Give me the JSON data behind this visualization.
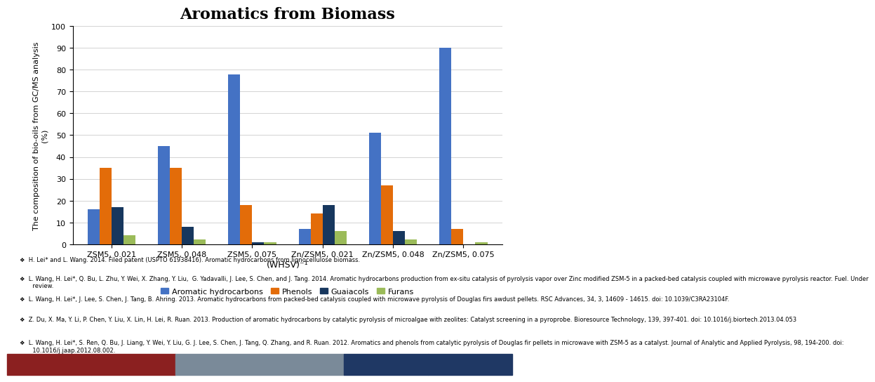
{
  "title": "Aromatics from Biomass",
  "categories": [
    "ZSM5, 0.021",
    "ZSM5, 0.048",
    "ZSM5, 0.075",
    "Zn/ZSM5, 0.021",
    "Zn/ZSM5, 0.048",
    "Zn/ZSM5, 0.075"
  ],
  "xlabel": "(WHSV)⁻¹",
  "ylabel": "The composition of bio-oils from GC/MS analysis\n(%)",
  "series": {
    "Aromatic hydrocarbons": [
      16,
      45,
      78,
      7,
      51,
      90
    ],
    "Phenols": [
      35,
      35,
      18,
      14,
      27,
      7
    ],
    "Guaiacols": [
      17,
      8,
      1,
      18,
      6,
      0
    ],
    "Furans": [
      4,
      2,
      1,
      6,
      2,
      1
    ]
  },
  "colors": {
    "Aromatic hydrocarbons": "#4472C4",
    "Phenols": "#E36C09",
    "Guaiacols": "#17375E",
    "Furans": "#9BBB59"
  },
  "ylim": [
    0,
    100
  ],
  "yticks": [
    0,
    10,
    20,
    30,
    40,
    50,
    60,
    70,
    80,
    90,
    100
  ],
  "title_fontsize": 16,
  "axis_label_fontsize": 8,
  "legend_fontsize": 8,
  "tick_fontsize": 8,
  "ref_fontsize": 6.0,
  "bg_color": "#FFFFFF",
  "references": [
    "❖  H. Lei* and L. Wang. 2014. Filed patent (USPTO 61938416). Aromatic hydrocarbons from lignocellulose biomass.",
    "❖  L. Wang, H. Lei*, Q. Bu, L. Zhu, Y. Wei, X. Zhang, Y. Liu,  G. Yadavalli, J. Lee, S. Chen, and J. Tang. 2014. Aromatic hydrocarbons production from ex-situ catalysis of pyrolysis vapor over Zinc modified ZSM-5 in a packed-bed catalysis coupled with microwave pyrolysis reactor. Fuel. Under\n       review.",
    "❖  L. Wang, H. Lei*, J. Lee, S. Chen, J. Tang, B. Ahring. 2013. Aromatic hydrocarbons from packed-bed catalysis coupled with microwave pyrolysis of Douglas firs awdust pellets. RSC Advances, 34, 3, 14609 - 14615. doi: 10.1039/C3RA23104F.",
    "❖  Z. Du, X. Ma, Y. Li, P. Chen, Y. Liu, X. Lin, H. Lei, R. Ruan. 2013. Production of aromatic hydrocarbons by catalytic pyrolysis of microalgae with zeolites: Catalyst screening in a pyroprobe. Bioresource Technology, 139, 397-401. doi: 10.1016/j.biortech.2013.04.053",
    "❖  L. Wang, H. Lei*, S. Ren, Q. Bu, J. Liang, Y. Wei, Y. Liu, G. J. Lee, S. Chen, J. Tang, Q. Zhang, and R. Ruan. 2012. Aromatics and phenols from catalytic pyrolysis of Douglas fir pellets in microwave with ZSM-5 as a catalyst. Journal of Analytic and Applied Pyrolysis, 98, 194-200. doi:\n       10.1016/j.jaap.2012.08.002."
  ],
  "footer_colors": [
    "#8B2020",
    "#8B2020",
    "#7A8A99",
    "#7A8A99",
    "#1F3864",
    "#1F3864"
  ]
}
